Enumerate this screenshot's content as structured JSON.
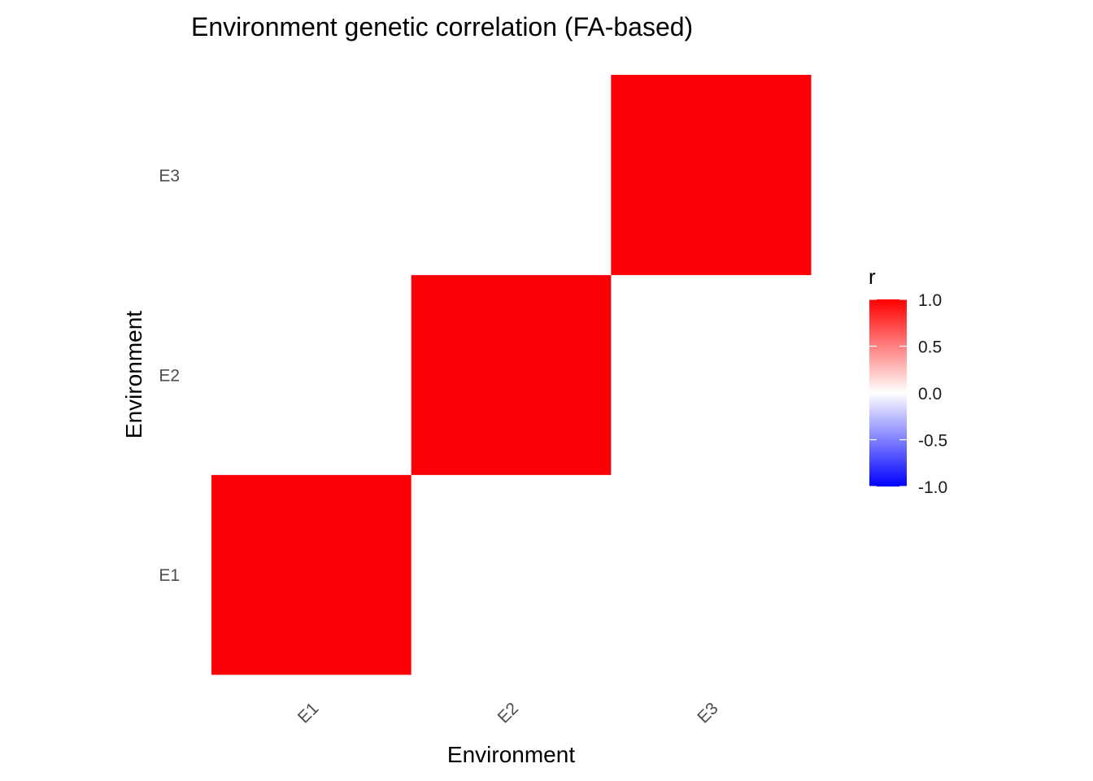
{
  "chart_data": {
    "type": "heatmap",
    "title": "Environment genetic correlation (FA-based)",
    "xlabel": "Environment",
    "ylabel": "Environment",
    "x_categories": [
      "E1",
      "E2",
      "E3"
    ],
    "y_categories": [
      "E1",
      "E2",
      "E3"
    ],
    "values": [
      [
        1.0,
        0.0,
        0.0
      ],
      [
        0.0,
        1.0,
        0.0
      ],
      [
        0.0,
        0.0,
        1.0
      ]
    ],
    "values_orientation": "rows = y category (E1..E3), columns = x category (E1..E3)",
    "x_tick_rotation_deg": 45,
    "grid": false,
    "legend": {
      "title": "r",
      "placement": "right",
      "type": "colorbar",
      "limits": [
        -1.0,
        1.0
      ],
      "breaks": [
        1.0,
        0.5,
        0.0,
        -0.5,
        -1.0
      ],
      "break_labels": [
        "1.0",
        "0.5",
        "0.0",
        "-0.5",
        "-1.0"
      ],
      "colors": {
        "low": "#0000ff",
        "mid": "#ffffff",
        "high": "#ff0000"
      },
      "midpoint": 0.0
    }
  }
}
